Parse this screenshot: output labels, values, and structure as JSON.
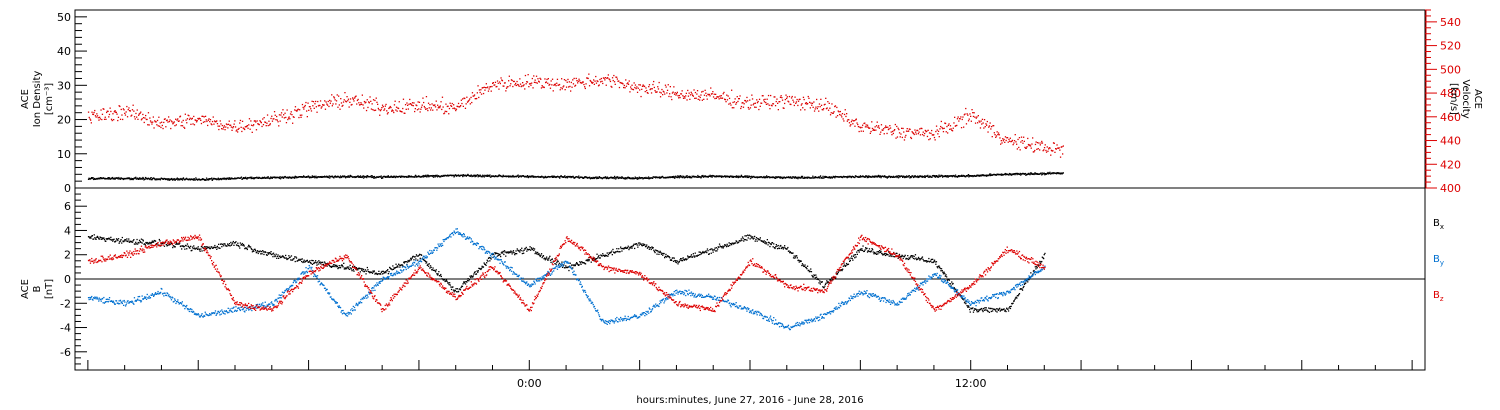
{
  "chart_data": [
    {
      "type": "scatter",
      "x_unit": "hours from 00:00 on the middle day",
      "xlim": [
        -12.35,
        24.35
      ],
      "ylabel": [
        "ACE",
        "Ion Density",
        "[cm⁻³]"
      ],
      "ylim": [
        0,
        52
      ],
      "yticks": [
        "0",
        "10",
        "20",
        "30",
        "40",
        "50"
      ],
      "y2label": [
        "ACE",
        "Velocity",
        "[km/s]"
      ],
      "y2lim": [
        400,
        550
      ],
      "y2ticks": [
        "400",
        "420",
        "440",
        "460",
        "480",
        "500",
        "520",
        "540"
      ],
      "series": [
        {
          "axis": "left",
          "color": "#000000",
          "x": [
            -12,
            -11,
            -10,
            -9,
            -8,
            -7,
            -6,
            -5,
            -4,
            -3,
            -2,
            -1,
            0,
            1,
            2,
            3,
            4,
            5,
            6,
            7,
            8,
            9,
            10,
            11,
            12,
            13,
            14.5
          ],
          "y": [
            3.0,
            3.0,
            2.8,
            2.7,
            3.0,
            3.2,
            3.4,
            3.5,
            3.4,
            3.6,
            3.8,
            3.7,
            3.5,
            3.4,
            3.2,
            3.1,
            3.4,
            3.6,
            3.4,
            3.2,
            3.3,
            3.5,
            3.5,
            3.6,
            3.7,
            4.2,
            4.5
          ]
        },
        {
          "axis": "right",
          "color": "#dd0000",
          "x": [
            -12,
            -11,
            -10,
            -9,
            -8,
            -7,
            -6,
            -5,
            -4,
            -3,
            -2,
            -1,
            0,
            1,
            2,
            3,
            4,
            5,
            6,
            7,
            8,
            9,
            10,
            11,
            12,
            13,
            14.5
          ],
          "y": [
            460,
            465,
            455,
            458,
            452,
            458,
            468,
            475,
            468,
            470,
            468,
            488,
            490,
            488,
            492,
            485,
            480,
            478,
            472,
            474,
            470,
            452,
            448,
            446,
            462,
            440,
            432
          ]
        }
      ]
    },
    {
      "type": "scatter",
      "x_unit": "hours from 00:00 on the middle day",
      "xlim": [
        -12.35,
        24.35
      ],
      "xticks": [
        {
          "x": 0,
          "label": "0:00"
        },
        {
          "x": 12,
          "label": "12:00"
        }
      ],
      "xlabel": "hours:minutes, June 27, 2016 - June 28, 2016",
      "ylabel": [
        "ACE",
        "B",
        "[nT]"
      ],
      "ylim": [
        -7.5,
        7.5
      ],
      "yticks": [
        "-6",
        "-4",
        "-2",
        "0",
        "2",
        "4",
        "6"
      ],
      "series": [
        {
          "name": "Bx",
          "color": "#000000",
          "x": [
            -12,
            -11,
            -10,
            -9,
            -8,
            -7,
            -6,
            -5,
            -4,
            -3,
            -2,
            -1,
            0,
            1,
            2,
            3,
            4,
            5,
            6,
            7,
            8,
            9,
            10,
            11,
            12,
            13,
            14
          ],
          "y": [
            3.5,
            3.2,
            3.0,
            2.5,
            3.0,
            2.0,
            1.5,
            1.0,
            0.5,
            2.0,
            -1.0,
            2.0,
            2.5,
            1.0,
            2.0,
            3.0,
            1.5,
            2.5,
            3.5,
            2.5,
            -0.5,
            2.5,
            2.0,
            1.5,
            -2.5,
            -2.5,
            2.0
          ]
        },
        {
          "name": "By",
          "color": "#0070d0",
          "x": [
            -12,
            -11,
            -10,
            -9,
            -8,
            -7,
            -6,
            -5,
            -4,
            -3,
            -2,
            -1,
            0,
            1,
            2,
            3,
            4,
            5,
            6,
            7,
            8,
            9,
            10,
            11,
            12,
            13,
            14
          ],
          "y": [
            -1.5,
            -2.0,
            -1.0,
            -3.0,
            -2.5,
            -2.0,
            1.0,
            -3.0,
            0.0,
            1.5,
            4.0,
            2.0,
            -0.5,
            1.5,
            -3.5,
            -3.0,
            -1.0,
            -1.5,
            -2.5,
            -4.0,
            -3.0,
            -1.0,
            -2.0,
            0.5,
            -2.0,
            -1.0,
            1.0
          ]
        },
        {
          "name": "Bz",
          "color": "#dd0000",
          "x": [
            -12,
            -11,
            -10,
            -9,
            -8,
            -7,
            -6,
            -5,
            -4,
            -3,
            -2,
            -1,
            0,
            1,
            2,
            3,
            4,
            5,
            6,
            7,
            8,
            9,
            10,
            11,
            12,
            13,
            14
          ],
          "y": [
            1.5,
            2.0,
            3.0,
            3.5,
            -2.0,
            -2.5,
            0.5,
            2.0,
            -2.5,
            1.0,
            -1.5,
            1.0,
            -2.5,
            3.5,
            1.0,
            0.5,
            -2.0,
            -2.5,
            1.5,
            -0.5,
            -1.0,
            3.5,
            2.0,
            -2.5,
            -0.5,
            2.5,
            1.0
          ]
        }
      ],
      "legend": [
        "B",
        "B",
        "B"
      ],
      "legend_sub": [
        "x",
        "y",
        "z"
      ],
      "legend_placement": "right"
    }
  ]
}
